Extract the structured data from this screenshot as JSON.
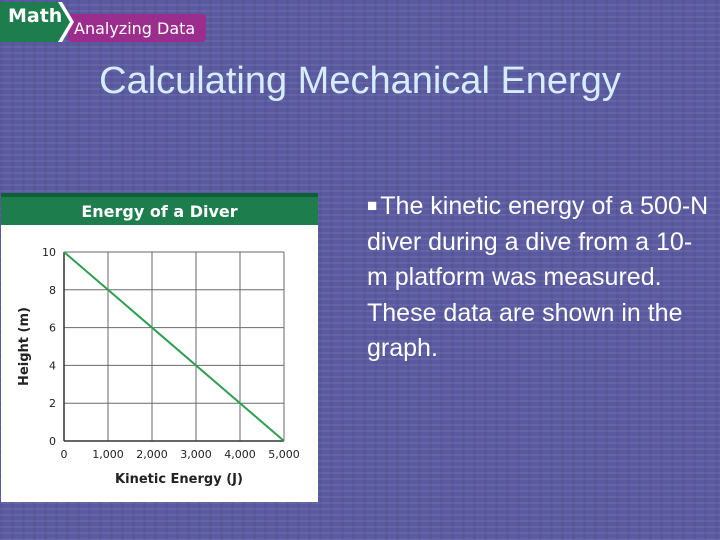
{
  "badge": {
    "main": "Math",
    "sub": "Analyzing Data"
  },
  "slide": {
    "title": "Calculating Mechanical Energy",
    "bullet": "The kinetic energy of a 500-N diver during a dive from a 10-m platform was measured. These data are shown in the graph."
  },
  "colors": {
    "background": "#5a5aa0",
    "title": "#d6ecff",
    "chart_header": "#1d7d4d",
    "line": "#2e9e4f",
    "badge_green": "#1d7d4d",
    "badge_purple": "#9b2d8c"
  },
  "chart_data": {
    "type": "line",
    "title": "Energy of a Diver",
    "xlabel": "Kinetic Energy (J)",
    "ylabel": "Height (m)",
    "xlim": [
      0,
      5000
    ],
    "ylim": [
      0,
      10
    ],
    "xticks": [
      0,
      1000,
      2000,
      3000,
      4000,
      5000
    ],
    "xtick_labels": [
      "0",
      "1,000",
      "2,000",
      "3,000",
      "4,000",
      "5,000"
    ],
    "yticks": [
      0,
      2,
      4,
      6,
      8,
      10
    ],
    "ytick_labels": [
      "0",
      "2",
      "4",
      "6",
      "8",
      "10"
    ],
    "grid": true,
    "series": [
      {
        "x": [
          0,
          5000
        ],
        "y": [
          10,
          0
        ]
      }
    ]
  }
}
